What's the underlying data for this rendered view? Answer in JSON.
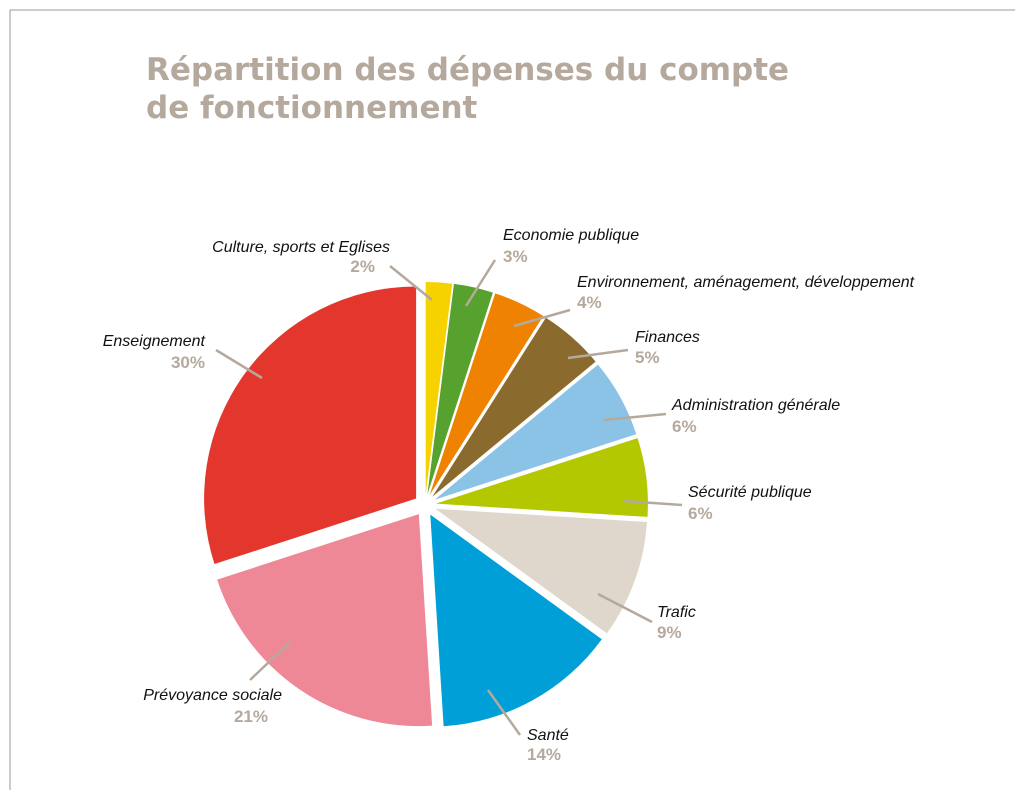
{
  "chart_data": {
    "type": "pie",
    "title": [
      "Répartition des dépenses du compte",
      "de fonctionnement"
    ],
    "categories": [
      "Culture, sports et Eglises",
      "Economie publique",
      "Environnement, aménagement, développement",
      "Finances",
      "Administration générale",
      "Sécurité publique",
      "Trafic",
      "Santé",
      "Prévoyance sociale",
      "Enseignement"
    ],
    "values": [
      2,
      3,
      4,
      5,
      6,
      6,
      9,
      14,
      21,
      30
    ],
    "value_labels": [
      "2%",
      "3%",
      "4%",
      "5%",
      "6%",
      "6%",
      "9%",
      "14%",
      "21%",
      "30%"
    ],
    "colors": [
      "#f6d200",
      "#57a22e",
      "#ef8200",
      "#8b6a2e",
      "#8bc3e6",
      "#b3c800",
      "#dfd7cc",
      "#009fd8",
      "#ef8896",
      "#e3362c"
    ]
  }
}
